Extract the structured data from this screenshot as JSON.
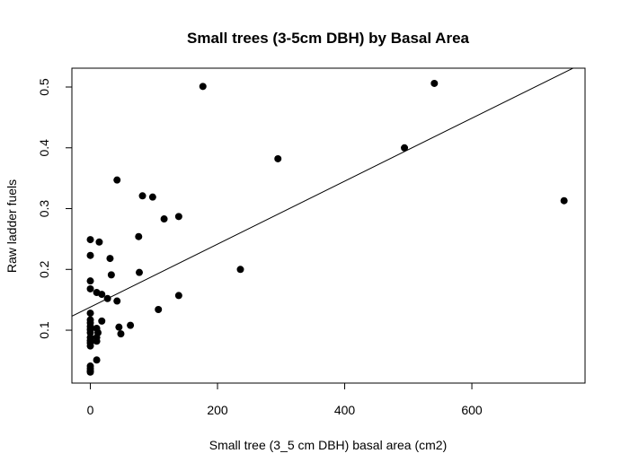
{
  "chart_data": {
    "type": "scatter",
    "title": "Small trees (3-5cm DBH) by Basal Area",
    "xlabel": "Small tree (3_5 cm DBH) basal area (cm2)",
    "ylabel": "Raw ladder fuels",
    "xlim": [
      -29,
      778
    ],
    "ylim": [
      0.013,
      0.531
    ],
    "x_ticks": [
      0,
      200,
      400,
      600
    ],
    "y_ticks": [
      0.1,
      0.2,
      0.3,
      0.4,
      0.5
    ],
    "x_tick_labels": [
      "0",
      "200",
      "400",
      "600"
    ],
    "y_tick_labels": [
      "0.1",
      "0.2",
      "0.3",
      "0.4",
      "0.5"
    ],
    "grid": false,
    "point_color": "#000000",
    "points": [
      {
        "x": 0,
        "y": 0.249
      },
      {
        "x": 0,
        "y": 0.223
      },
      {
        "x": 0,
        "y": 0.181
      },
      {
        "x": 0,
        "y": 0.168
      },
      {
        "x": 0,
        "y": 0.128
      },
      {
        "x": 0,
        "y": 0.117
      },
      {
        "x": 0,
        "y": 0.112
      },
      {
        "x": 0,
        "y": 0.106
      },
      {
        "x": 0,
        "y": 0.101
      },
      {
        "x": 0,
        "y": 0.096
      },
      {
        "x": 0,
        "y": 0.088
      },
      {
        "x": 0,
        "y": 0.083
      },
      {
        "x": 0,
        "y": 0.079
      },
      {
        "x": 0,
        "y": 0.074
      },
      {
        "x": 0,
        "y": 0.041
      },
      {
        "x": 0,
        "y": 0.037
      },
      {
        "x": 0,
        "y": 0.033
      },
      {
        "x": 0,
        "y": 0.031
      },
      {
        "x": 10,
        "y": 0.162
      },
      {
        "x": 10,
        "y": 0.103
      },
      {
        "x": 10,
        "y": 0.088
      },
      {
        "x": 10,
        "y": 0.082
      },
      {
        "x": 10,
        "y": 0.051
      },
      {
        "x": 12,
        "y": 0.096
      },
      {
        "x": 14,
        "y": 0.245
      },
      {
        "x": 18,
        "y": 0.159
      },
      {
        "x": 18,
        "y": 0.115
      },
      {
        "x": 27,
        "y": 0.152
      },
      {
        "x": 31,
        "y": 0.218
      },
      {
        "x": 33,
        "y": 0.191
      },
      {
        "x": 42,
        "y": 0.347
      },
      {
        "x": 42,
        "y": 0.148
      },
      {
        "x": 45,
        "y": 0.105
      },
      {
        "x": 48,
        "y": 0.094
      },
      {
        "x": 63,
        "y": 0.108
      },
      {
        "x": 76,
        "y": 0.254
      },
      {
        "x": 77,
        "y": 0.195
      },
      {
        "x": 82,
        "y": 0.321
      },
      {
        "x": 98,
        "y": 0.319
      },
      {
        "x": 107,
        "y": 0.134
      },
      {
        "x": 116,
        "y": 0.283
      },
      {
        "x": 139,
        "y": 0.287
      },
      {
        "x": 139,
        "y": 0.157
      },
      {
        "x": 177,
        "y": 0.501
      },
      {
        "x": 236,
        "y": 0.2
      },
      {
        "x": 295,
        "y": 0.382
      },
      {
        "x": 494,
        "y": 0.4
      },
      {
        "x": 541,
        "y": 0.506
      },
      {
        "x": 745,
        "y": 0.313
      }
    ],
    "fit_line": {
      "x": [
        -29,
        759
      ],
      "y": [
        0.123,
        0.531
      ]
    }
  }
}
